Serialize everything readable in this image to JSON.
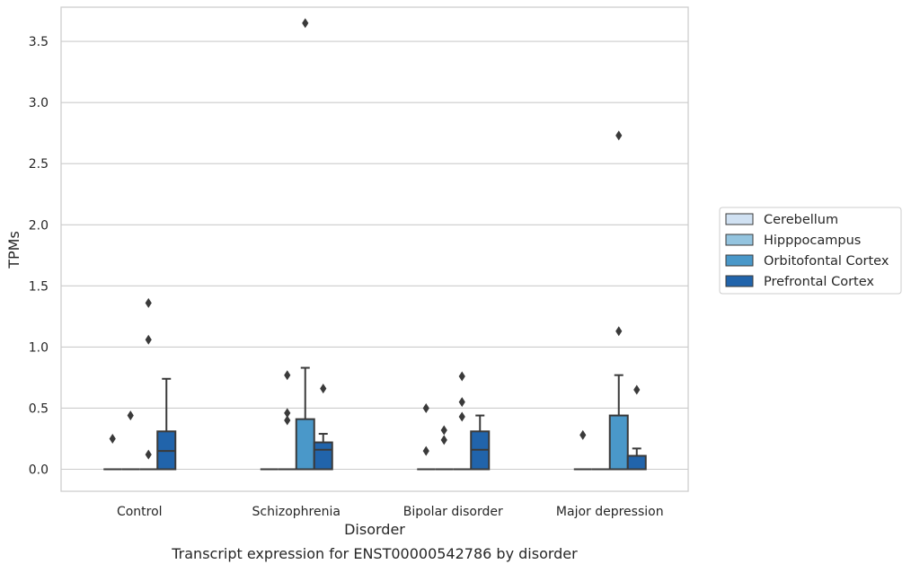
{
  "chart_data": {
    "type": "box",
    "title": "Transcript expression for ENST00000542786 by disorder",
    "xlabel": "Disorder",
    "ylabel": "TPMs",
    "categories": [
      "Control",
      "Schizophrenia",
      "Bipolar disorder",
      "Major depression"
    ],
    "ylim": [
      -0.18,
      3.78
    ],
    "yticks": [
      0.0,
      0.5,
      1.0,
      1.5,
      2.0,
      2.5,
      3.0,
      3.5
    ],
    "ytick_labels": [
      "0.0",
      "0.5",
      "1.0",
      "1.5",
      "2.0",
      "2.5",
      "3.0",
      "3.5"
    ],
    "grid": "horizontal",
    "legend_position": "right",
    "series": [
      {
        "name": "Cerebellum",
        "color": "#d0e1f2",
        "boxes": [
          {
            "q1": 0,
            "median": 0,
            "q3": 0,
            "whisker_low": 0,
            "whisker_high": 0,
            "outliers": [
              0.25
            ]
          },
          {
            "q1": 0,
            "median": 0,
            "q3": 0,
            "whisker_low": 0,
            "whisker_high": 0,
            "outliers": []
          },
          {
            "q1": 0,
            "median": 0,
            "q3": 0,
            "whisker_low": 0,
            "whisker_high": 0,
            "outliers": [
              0.15,
              0.5
            ]
          },
          {
            "q1": 0,
            "median": 0,
            "q3": 0,
            "whisker_low": 0,
            "whisker_high": 0,
            "outliers": [
              0.28
            ]
          }
        ]
      },
      {
        "name": "Hipppocampus",
        "color": "#94c4df",
        "boxes": [
          {
            "q1": 0,
            "median": 0,
            "q3": 0,
            "whisker_low": 0,
            "whisker_high": 0,
            "outliers": [
              0.44
            ]
          },
          {
            "q1": 0,
            "median": 0,
            "q3": 0,
            "whisker_low": 0,
            "whisker_high": 0,
            "outliers": [
              0.4,
              0.46,
              0.77
            ]
          },
          {
            "q1": 0,
            "median": 0,
            "q3": 0,
            "whisker_low": 0,
            "whisker_high": 0,
            "outliers": [
              0.24,
              0.32
            ]
          },
          {
            "q1": 0,
            "median": 0,
            "q3": 0,
            "whisker_low": 0,
            "whisker_high": 0,
            "outliers": []
          }
        ]
      },
      {
        "name": "Orbitofontal Cortex",
        "color": "#4a98c9",
        "boxes": [
          {
            "q1": 0,
            "median": 0,
            "q3": 0,
            "whisker_low": 0,
            "whisker_high": 0,
            "outliers": [
              0.12,
              1.06,
              1.36
            ]
          },
          {
            "q1": 0,
            "median": 0,
            "q3": 0.41,
            "whisker_low": 0,
            "whisker_high": 0.83,
            "outliers": [
              3.65
            ]
          },
          {
            "q1": 0,
            "median": 0,
            "q3": 0,
            "whisker_low": 0,
            "whisker_high": 0,
            "outliers": [
              0.43,
              0.55,
              0.76
            ]
          },
          {
            "q1": 0,
            "median": 0,
            "q3": 0.44,
            "whisker_low": 0,
            "whisker_high": 0.77,
            "outliers": [
              1.13,
              2.73
            ]
          }
        ]
      },
      {
        "name": "Prefrontal Cortex",
        "color": "#2164ab",
        "boxes": [
          {
            "q1": 0,
            "median": 0.15,
            "q3": 0.31,
            "whisker_low": 0,
            "whisker_high": 0.74,
            "outliers": []
          },
          {
            "q1": 0,
            "median": 0.16,
            "q3": 0.22,
            "whisker_low": 0,
            "whisker_high": 0.29,
            "outliers": [
              0.66
            ]
          },
          {
            "q1": 0,
            "median": 0.16,
            "q3": 0.31,
            "whisker_low": 0,
            "whisker_high": 0.44,
            "outliers": []
          },
          {
            "q1": 0,
            "median": 0,
            "q3": 0.11,
            "whisker_low": 0,
            "whisker_high": 0.17,
            "outliers": [
              0.65
            ]
          }
        ]
      }
    ]
  }
}
